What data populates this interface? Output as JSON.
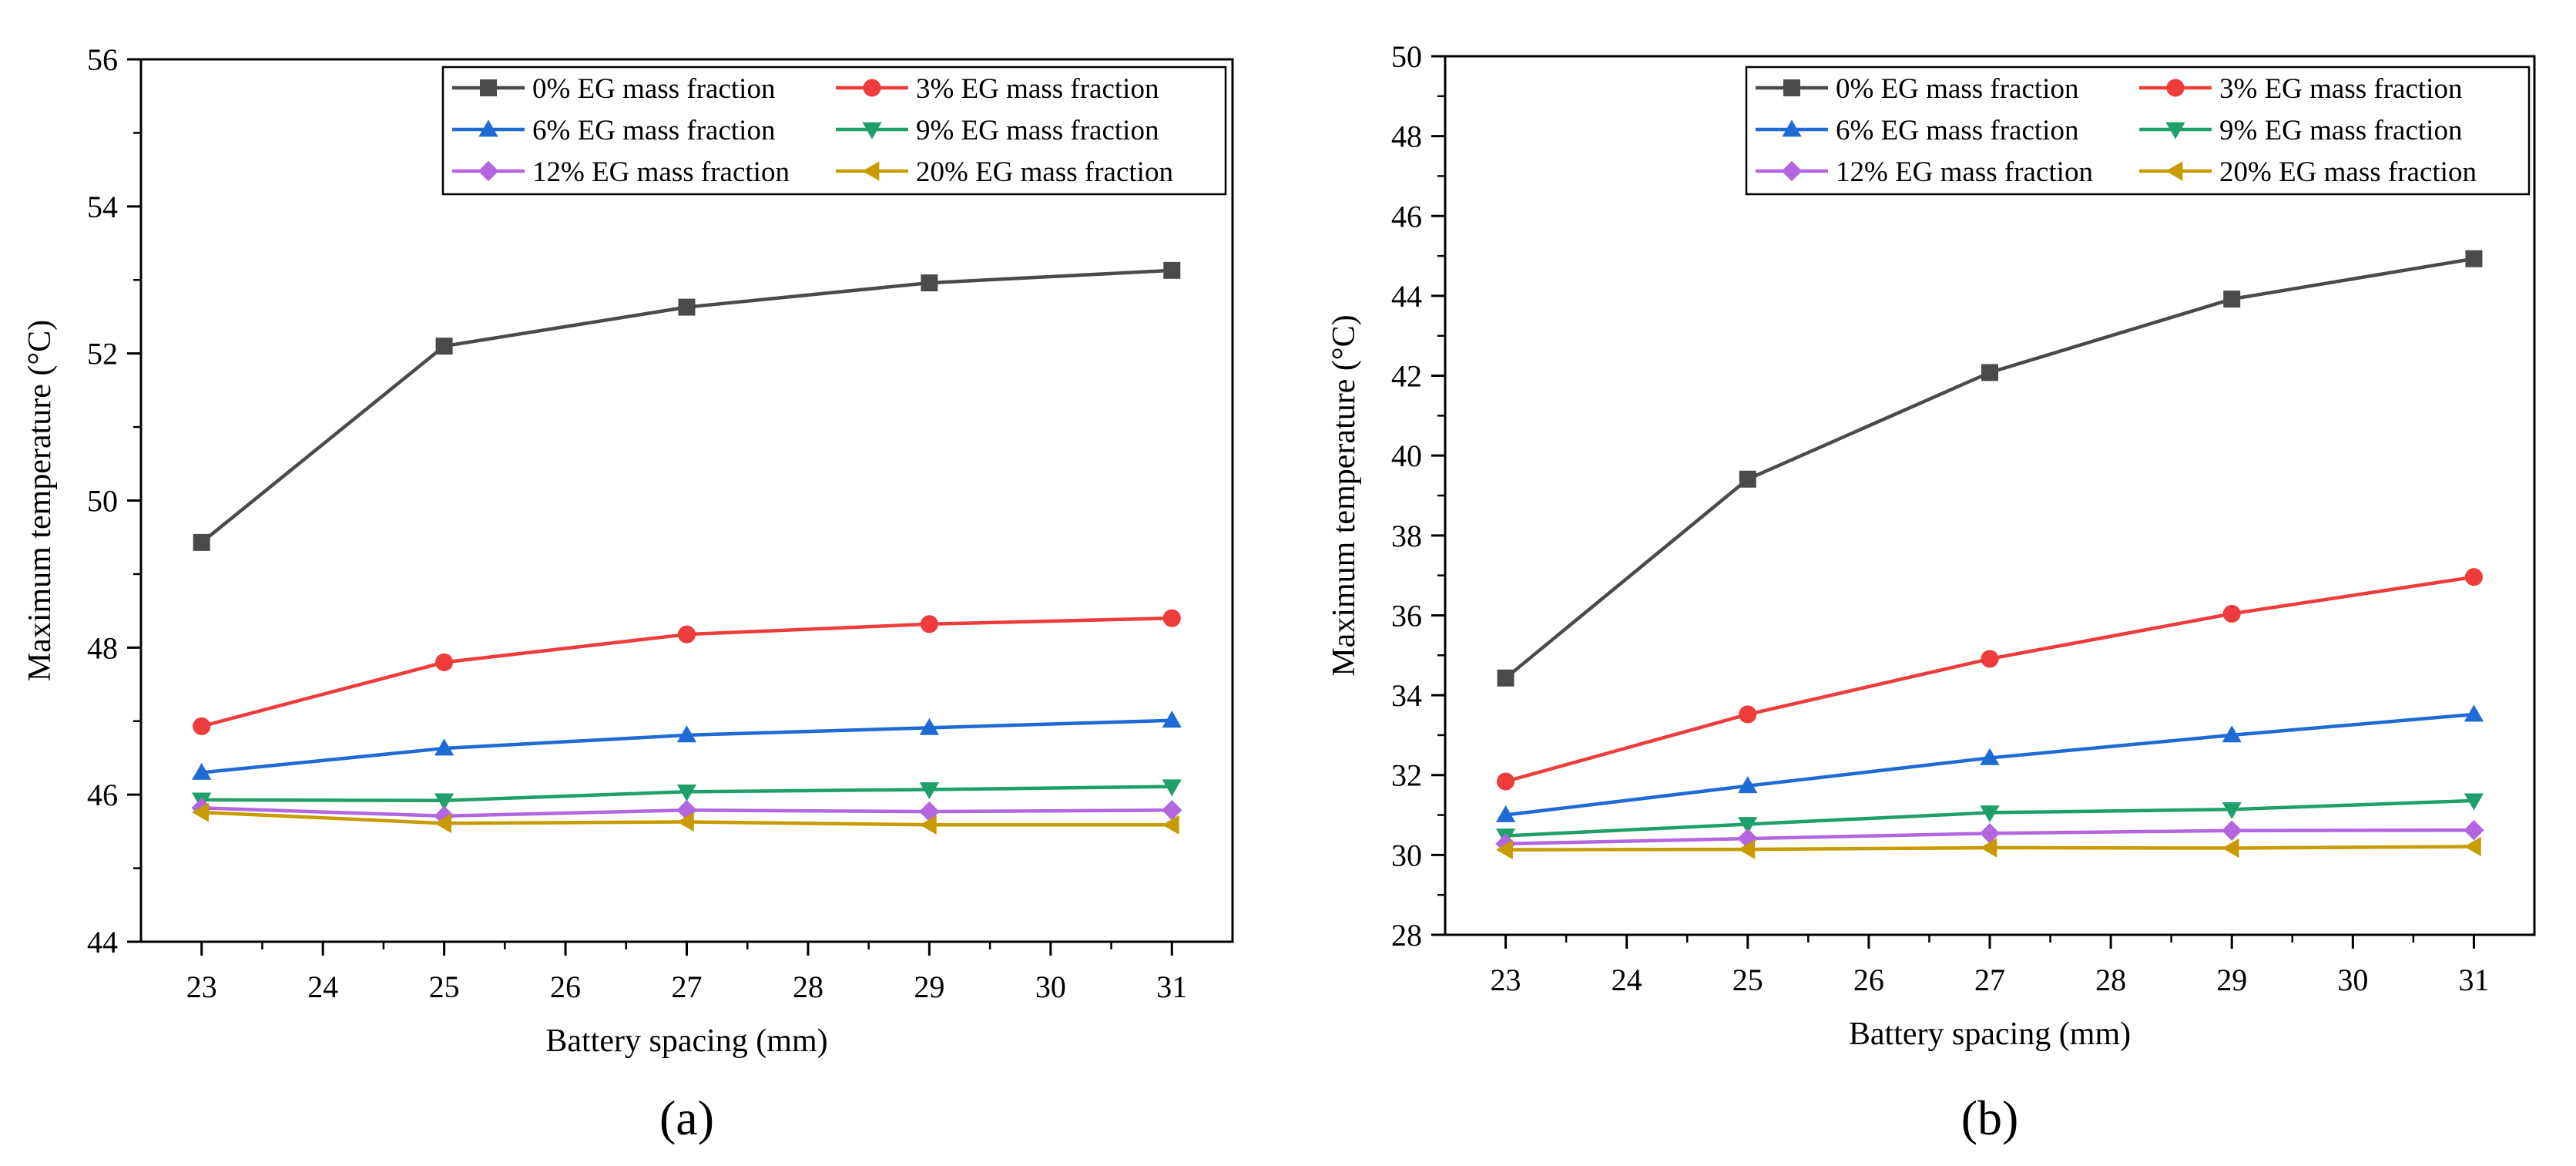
{
  "chart_data": [
    {
      "type": "line",
      "panel_label": "(a)",
      "xlabel": "Battery spacing (mm)",
      "ylabel": "Maximum temperature (°C)",
      "xlim": [
        22.5,
        31.5
      ],
      "ylim": [
        44,
        56
      ],
      "xticks": [
        23,
        24,
        25,
        26,
        27,
        28,
        29,
        30,
        31
      ],
      "yticks": [
        44,
        46,
        48,
        50,
        52,
        54,
        56
      ],
      "grid": false,
      "legend_position": "top-right",
      "x": [
        23,
        25,
        27,
        29,
        31
      ],
      "series": [
        {
          "name": "0%  EG mass fraction",
          "values": [
            49.43,
            52.1,
            52.63,
            52.96,
            53.13
          ],
          "color": "#4a4a4a",
          "marker": "square"
        },
        {
          "name": "3%  EG mass fraction",
          "values": [
            46.93,
            47.8,
            48.18,
            48.32,
            48.4
          ],
          "color": "#ee3b3b",
          "marker": "circle"
        },
        {
          "name": "6%  EG mass fraction",
          "values": [
            46.3,
            46.63,
            46.81,
            46.91,
            47.01
          ],
          "color": "#1f6bd6",
          "marker": "triangle-up"
        },
        {
          "name": "9%  EG mass fraction",
          "values": [
            45.93,
            45.92,
            46.04,
            46.07,
            46.11
          ],
          "color": "#1fa06a",
          "marker": "triangle-down"
        },
        {
          "name": "12% EG mass fraction",
          "values": [
            45.82,
            45.71,
            45.79,
            45.77,
            45.79
          ],
          "color": "#b266e0",
          "marker": "diamond"
        },
        {
          "name": "20% EG mass fraction",
          "values": [
            45.76,
            45.61,
            45.63,
            45.59,
            45.59
          ],
          "color": "#c89b00",
          "marker": "triangle-left"
        }
      ]
    },
    {
      "type": "line",
      "panel_label": "(b)",
      "xlabel": "Battery spacing (mm)",
      "ylabel": "Maximum temperature (°C)",
      "xlim": [
        22.5,
        31.5
      ],
      "ylim": [
        28,
        50
      ],
      "xticks": [
        23,
        24,
        25,
        26,
        27,
        28,
        29,
        30,
        31
      ],
      "yticks": [
        28,
        30,
        32,
        34,
        36,
        38,
        40,
        42,
        44,
        46,
        48,
        50
      ],
      "grid": false,
      "legend_position": "top-right",
      "x": [
        23,
        25,
        27,
        29,
        31
      ],
      "series": [
        {
          "name": "0%  EG mass fraction",
          "values": [
            34.43,
            39.41,
            42.08,
            43.92,
            44.93
          ],
          "color": "#4a4a4a",
          "marker": "square"
        },
        {
          "name": "3%  EG mass fraction",
          "values": [
            31.84,
            33.52,
            34.91,
            36.04,
            36.96
          ],
          "color": "#ee3b3b",
          "marker": "circle"
        },
        {
          "name": "6%  EG mass fraction",
          "values": [
            31.0,
            31.73,
            32.43,
            33.0,
            33.52
          ],
          "color": "#1f6bd6",
          "marker": "triangle-up"
        },
        {
          "name": "9%  EG mass fraction",
          "values": [
            30.48,
            30.77,
            31.06,
            31.14,
            31.36
          ],
          "color": "#1fa06a",
          "marker": "triangle-down"
        },
        {
          "name": "12% EG mass fraction",
          "values": [
            30.28,
            30.41,
            30.54,
            30.61,
            30.62
          ],
          "color": "#b266e0",
          "marker": "diamond"
        },
        {
          "name": "20% EG mass fraction",
          "values": [
            30.13,
            30.14,
            30.18,
            30.17,
            30.21
          ],
          "color": "#c89b00",
          "marker": "triangle-left"
        }
      ]
    }
  ]
}
